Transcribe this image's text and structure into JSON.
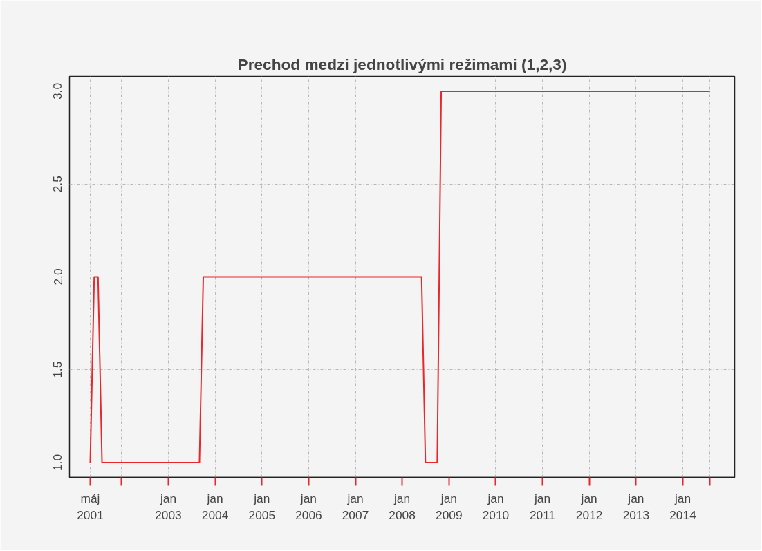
{
  "chart_data": {
    "type": "line",
    "title": "Prechod medzi jednotlivými režimami (1,2,3)",
    "x": [
      "2001-05",
      "2001-06",
      "2001-07",
      "2001-08",
      "2003-09",
      "2003-10",
      "2008-06",
      "2008-07",
      "2008-10",
      "2008-11",
      "2014-08"
    ],
    "series": [
      {
        "color": "#e8262b",
        "values": [
          1,
          2,
          2,
          1,
          1,
          2,
          2,
          1,
          1,
          3,
          3
        ]
      }
    ],
    "xlim": [
      "2000-11-20",
      "2015-02-10"
    ],
    "xticks": [
      {
        "value": "2001-05",
        "label": "máj\n2001"
      },
      {
        "value": "2002-01",
        "label": null
      },
      {
        "value": "2003-01",
        "label": "jan\n2003"
      },
      {
        "value": "2004-01",
        "label": "jan\n2004"
      },
      {
        "value": "2005-01",
        "label": "jan\n2005"
      },
      {
        "value": "2006-01",
        "label": "jan\n2006"
      },
      {
        "value": "2007-01",
        "label": "jan\n2007"
      },
      {
        "value": "2008-01",
        "label": "jan\n2008"
      },
      {
        "value": "2009-01",
        "label": "jan\n2009"
      },
      {
        "value": "2010-01",
        "label": "jan\n2010"
      },
      {
        "value": "2011-01",
        "label": "jan\n2011"
      },
      {
        "value": "2012-01",
        "label": "jan\n2012"
      },
      {
        "value": "2013-01",
        "label": "jan\n2013"
      },
      {
        "value": "2014-01",
        "label": "jan\n2014"
      },
      {
        "value": "2014-08",
        "label": null
      }
    ],
    "ylim": [
      0.92,
      3.08
    ],
    "yticks": [
      {
        "value": 1,
        "label": "1.0"
      },
      {
        "value": 1.5,
        "label": "1.5"
      },
      {
        "value": 2,
        "label": "2.0"
      },
      {
        "value": 2.5,
        "label": "2.5"
      },
      {
        "value": 3,
        "label": "3.0"
      }
    ],
    "grid": true,
    "line_style": "solid",
    "marker": "none"
  }
}
